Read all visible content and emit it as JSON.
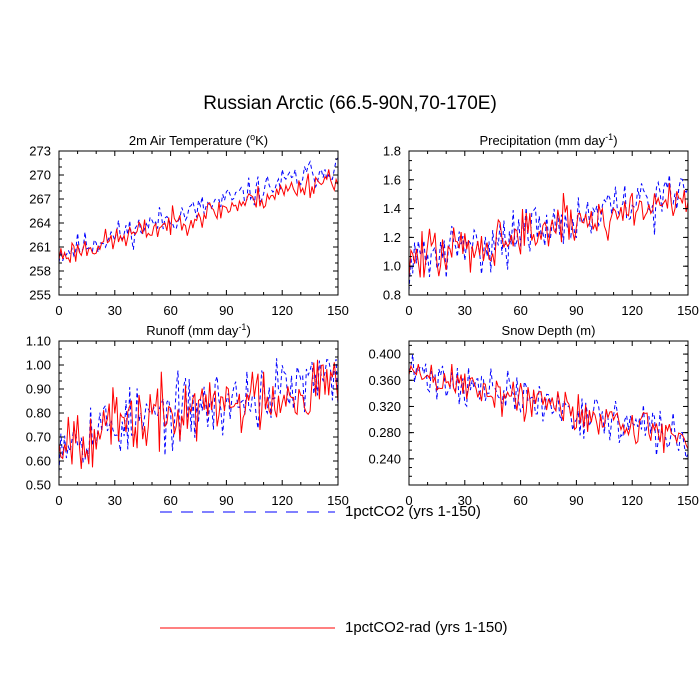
{
  "figure": {
    "title": "Russian Arctic (66.5-90N,70-170E)"
  },
  "legend": [
    {
      "label": "1pctCO2 (yrs 1-150)",
      "color": "#0000ff",
      "style": "dashed"
    },
    {
      "label": "1pctCO2-rad (yrs 1-150)",
      "color": "#ff0000",
      "style": "solid"
    }
  ],
  "chart_data": [
    {
      "type": "line",
      "title_main": "2m Air Temperature (",
      "title_sup": "o",
      "title_tail": "K)",
      "xlim": [
        0,
        150
      ],
      "ylim": [
        255,
        273
      ],
      "x_ticks": [
        "0",
        "30",
        "60",
        "90",
        "120",
        "150"
      ],
      "y_ticks": [
        "255",
        "258",
        "261",
        "264",
        "267",
        "270",
        "273"
      ],
      "series": [
        {
          "name": "1pctCO2 (yrs 1-150)",
          "color": "#0000ff",
          "start": 260.2,
          "end": 271.2,
          "noise": 0.9,
          "seed": 11
        },
        {
          "name": "1pctCO2-rad (yrs 1-150)",
          "color": "#ff0000",
          "start": 259.9,
          "end": 269.9,
          "noise": 0.8,
          "seed": 23
        }
      ]
    },
    {
      "type": "line",
      "title_main": "Precipitation (mm day",
      "title_sup": "-1",
      "title_tail": ")",
      "xlim": [
        0,
        150
      ],
      "ylim": [
        0.8,
        1.8
      ],
      "x_ticks": [
        "0",
        "30",
        "60",
        "90",
        "120",
        "150"
      ],
      "y_ticks": [
        "0.8",
        "1.0",
        "1.2",
        "1.4",
        "1.6",
        "1.8"
      ],
      "series": [
        {
          "name": "1pctCO2 (yrs 1-150)",
          "color": "#0000ff",
          "start": 1.03,
          "end": 1.52,
          "noise": 0.09,
          "seed": 31
        },
        {
          "name": "1pctCO2-rad (yrs 1-150)",
          "color": "#ff0000",
          "start": 1.04,
          "end": 1.48,
          "noise": 0.09,
          "seed": 47
        }
      ]
    },
    {
      "type": "line",
      "title_main": "Runoff (mm day",
      "title_sup": "-1",
      "title_tail": ")",
      "xlim": [
        0,
        150
      ],
      "ylim": [
        0.5,
        1.1
      ],
      "x_ticks": [
        "0",
        "30",
        "60",
        "90",
        "120",
        "150"
      ],
      "y_ticks": [
        "0.50",
        "0.60",
        "0.70",
        "0.80",
        "0.90",
        "1.00",
        "1.10"
      ],
      "series": [
        {
          "name": "1pctCO2 (yrs 1-150)",
          "color": "#0000ff",
          "start": 0.7,
          "end": 0.94,
          "noise": 0.07,
          "seed": 53
        },
        {
          "name": "1pctCO2-rad (yrs 1-150)",
          "color": "#ff0000",
          "start": 0.7,
          "end": 0.93,
          "noise": 0.07,
          "seed": 67
        }
      ]
    },
    {
      "type": "line",
      "title_main": "Snow Depth (m)",
      "title_sup": "",
      "title_tail": "",
      "xlim": [
        0,
        150
      ],
      "ylim": [
        0.2,
        0.42
      ],
      "x_ticks": [
        "0",
        "30",
        "60",
        "90",
        "120",
        "150"
      ],
      "y_ticks": [
        "0.240",
        "0.280",
        "0.320",
        "0.360",
        "0.400"
      ],
      "series": [
        {
          "name": "1pctCO2 (yrs 1-150)",
          "color": "#0000ff",
          "start": 0.375,
          "end": 0.27,
          "noise": 0.017,
          "seed": 71
        },
        {
          "name": "1pctCO2-rad (yrs 1-150)",
          "color": "#ff0000",
          "start": 0.372,
          "end": 0.272,
          "noise": 0.016,
          "seed": 89
        }
      ]
    }
  ]
}
